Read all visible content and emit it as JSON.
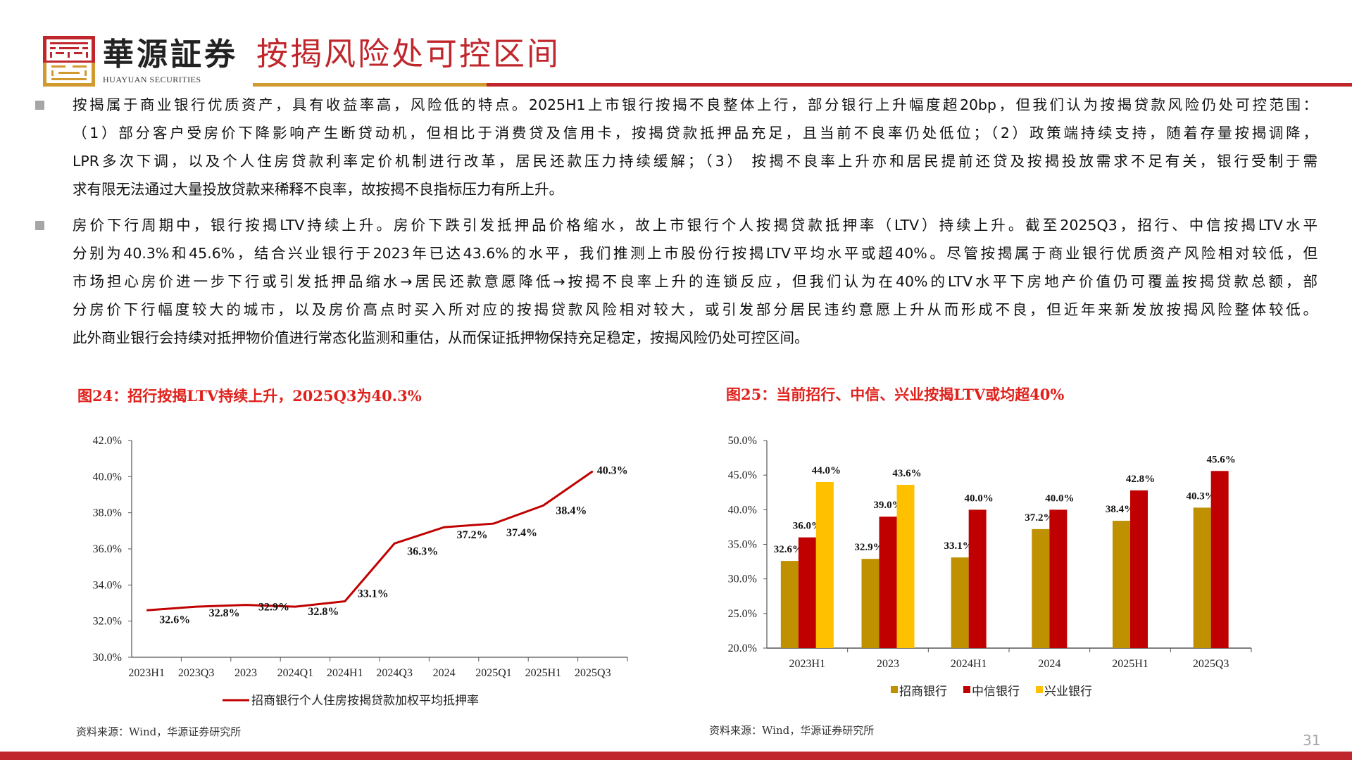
{
  "header": {
    "logo_cn": "華源証券",
    "logo_en": "HUAYUAN SECURITIES",
    "title": "按揭风险处可控区间"
  },
  "body": {
    "paragraphs": [
      {
        "lines": [
          "按揭属于商业银行优质资产，具有收益率高，风险低的特点。2025H1上市银行按揭不良整体上行，部分银行上升幅度超20bp，但我们认为按揭贷款风险仍处可控范围：",
          "（1）部分客户受房价下降影响产生断贷动机，但相比于消费贷及信用卡，按揭贷款抵押品充足，且当前不良率仍处低位；（2）政策端持续支持，随着存量按揭调降，",
          "LPR多次下调，以及个人住房贷款利率定价机制进行改革，居民还款压力持续缓解；（3） 按揭不良率上升亦和居民提前还贷及按揭投放需求不足有关，银行受制于需",
          "求有限无法通过大量投放贷款来稀释不良率，故按揭不良指标压力有所上升。"
        ]
      },
      {
        "lines": [
          "房价下行周期中，银行按揭LTV持续上升。房价下跌引发抵押品价格缩水，故上市银行个人按揭贷款抵押率（LTV）持续上升。截至2025Q3，招行、中信按揭LTV水平",
          "分别为40.3%和45.6%，结合兴业银行于2023年已达43.6%的水平，我们推测上市股份行按揭LTV平均水平或超40%。尽管按揭属于商业银行优质资产风险相对较低，但",
          "市场担心房价进一步下行或引发抵押品缩水→居民还款意愿降低→按揭不良率上升的连锁反应，但我们认为在40%的LTV水平下房地产价值仍可覆盖按揭贷款总额，部",
          "分房价下行幅度较大的城市，以及房价高点时买入所对应的按揭贷款风险相对较大，或引发部分居民违约意愿上升从而形成不良，但近年来新发放按揭风险整体较低。",
          "此外商业银行会持续对抵押物价值进行常态化监测和重估，从而保证抵押物保持充足稳定，按揭风险仍处可控区间。"
        ]
      }
    ]
  },
  "chart_data": [
    {
      "type": "line",
      "title": "图24：招行按揭LTV持续上升，2025Q3为40.3%",
      "categories": [
        "2023H1",
        "2023Q3",
        "2023",
        "2024Q1",
        "2024H1",
        "2024Q3",
        "2024",
        "2025Q1",
        "2025H1",
        "2025Q3"
      ],
      "series": [
        {
          "name": "招商银行个人住房按揭贷款加权平均抵押率",
          "values": [
            32.6,
            32.8,
            32.9,
            32.8,
            33.1,
            36.3,
            37.2,
            37.4,
            38.4,
            40.3
          ],
          "color": "#C00000"
        }
      ],
      "ylim": [
        30,
        42
      ],
      "yticks": [
        "30.0%",
        "32.0%",
        "34.0%",
        "36.0%",
        "38.0%",
        "40.0%",
        "42.0%"
      ],
      "ytick_values": [
        30,
        32,
        34,
        36,
        38,
        40,
        42
      ],
      "data_labels": [
        "32.6%",
        "32.8%",
        "32.9%",
        "32.8%",
        "33.1%",
        "36.3%",
        "37.2%",
        "37.4%",
        "38.4%",
        "40.3%"
      ],
      "legend": "bottom",
      "source": "资料来源：Wind，华源证券研究所"
    },
    {
      "type": "bar",
      "title": "图25：当前招行、中信、兴业按揭LTV或均超40%",
      "categories": [
        "2023H1",
        "2023",
        "2024H1",
        "2024",
        "2025H1",
        "2025Q3"
      ],
      "series": [
        {
          "name": "招商银行",
          "values": [
            32.6,
            32.9,
            33.1,
            37.2,
            38.4,
            40.3
          ],
          "labels": [
            "32.6%",
            "32.9%",
            "33.1%",
            "37.2%",
            "38.4%",
            "40.3%"
          ],
          "color": "#BF9000"
        },
        {
          "name": "中信银行",
          "values": [
            36.0,
            39.0,
            40.0,
            40.0,
            42.8,
            45.6
          ],
          "labels": [
            "36.0%",
            "39.0%",
            "40.0%",
            "40.0%",
            "42.8%",
            "45.6%"
          ],
          "color": "#C00000"
        },
        {
          "name": "兴业银行",
          "values": [
            44.0,
            43.6,
            null,
            null,
            null,
            null
          ],
          "labels": [
            "44.0%",
            "43.6%",
            null,
            null,
            null,
            null
          ],
          "color": "#FFC000"
        }
      ],
      "ylim": [
        20,
        50
      ],
      "yticks": [
        "20.0%",
        "25.0%",
        "30.0%",
        "35.0%",
        "40.0%",
        "45.0%",
        "50.0%"
      ],
      "ytick_values": [
        20,
        25,
        30,
        35,
        40,
        45,
        50
      ],
      "legend": "bottom",
      "source": "资料来源：Wind，华源证券研究所"
    }
  ],
  "footer": {
    "page_number": "31"
  },
  "colors": {
    "brand_red": "#C0272D",
    "brand_gold": "#D09A2F"
  }
}
